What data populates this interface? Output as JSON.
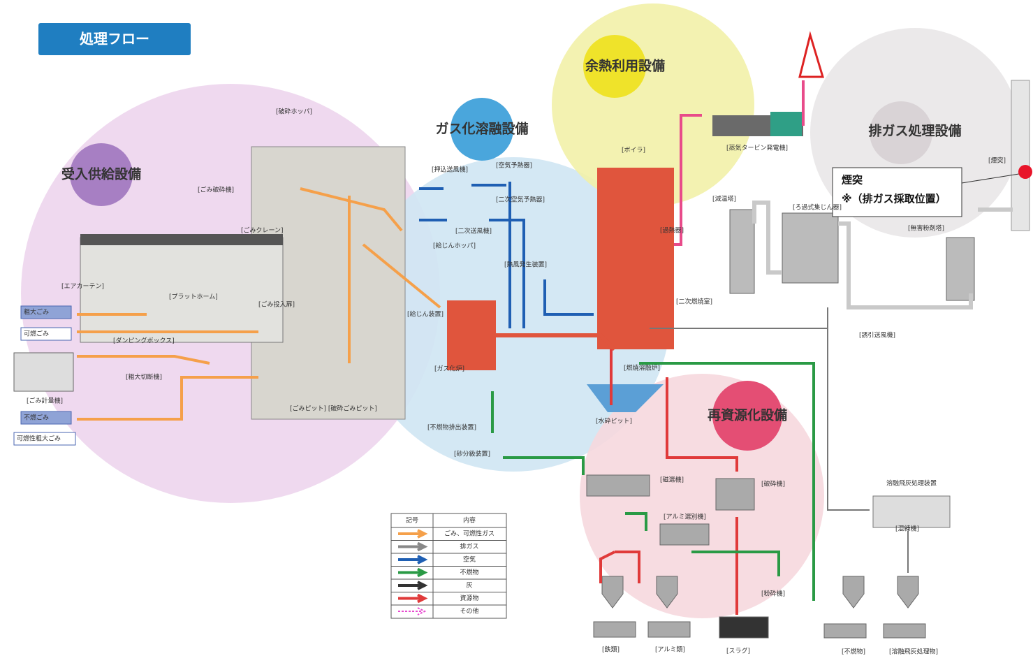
{
  "header": {
    "title": "処理フロー"
  },
  "zones": [
    "受入供給設備",
    "ガス化溶融設備",
    "余熱利用設備",
    "排ガス処理設備",
    "再資源化設備"
  ],
  "callout": {
    "title": "煙突",
    "note": "※（排ガス採取位置）"
  },
  "inputs": [
    "粗大ごみ",
    "可燃ごみ",
    "不燃ごみ",
    "可燃性粗大ごみ"
  ],
  "labels": [
    "[破砕ホッパ]",
    "[ごみ破砕機]",
    "[ごみクレーン]",
    "[エアカーテン]",
    "[プラットホーム]",
    "[ごみ投入扉]",
    "[ダンピングボックス]",
    "[粗大切断機]",
    "[ごみピット] [破砕ごみピット]",
    "[ごみ計量機]",
    "[押込送風機]",
    "[空気予熱器]",
    "[二次空気予熱器]",
    "[二次送風機]",
    "[給じんホッパ]",
    "[熱風発生装置]",
    "[給じん装置]",
    "[ガス化炉]",
    "[不燃物排出装置]",
    "[砂分級装置]",
    "[ボイラ]",
    "[蒸気タービン発電機]",
    "[過熱器]",
    "[二次燃焼室]",
    "[燃焼溶融炉]",
    "[水砕ピット]",
    "[減温塔]",
    "[ろ過式集じん器]",
    "[無害粉剤塔]",
    "[誘引送風機]",
    "[煙突]",
    "[磁選機]",
    "[アルミ選別機]",
    "[破砕機]",
    "[粉砕機]",
    "[混練機]",
    "[鉄類]",
    "[アルミ類]",
    "[スラグ]",
    "[不燃物]",
    "[溶融飛灰処理物]"
  ],
  "ash_unit": "溶融飛灰処理装置",
  "legend": {
    "headers": [
      "記号",
      "内容"
    ],
    "rows": [
      "ごみ、可燃性ガス",
      "排ガス",
      "空気",
      "不燃物",
      "灰",
      "資源物",
      "その他"
    ]
  }
}
